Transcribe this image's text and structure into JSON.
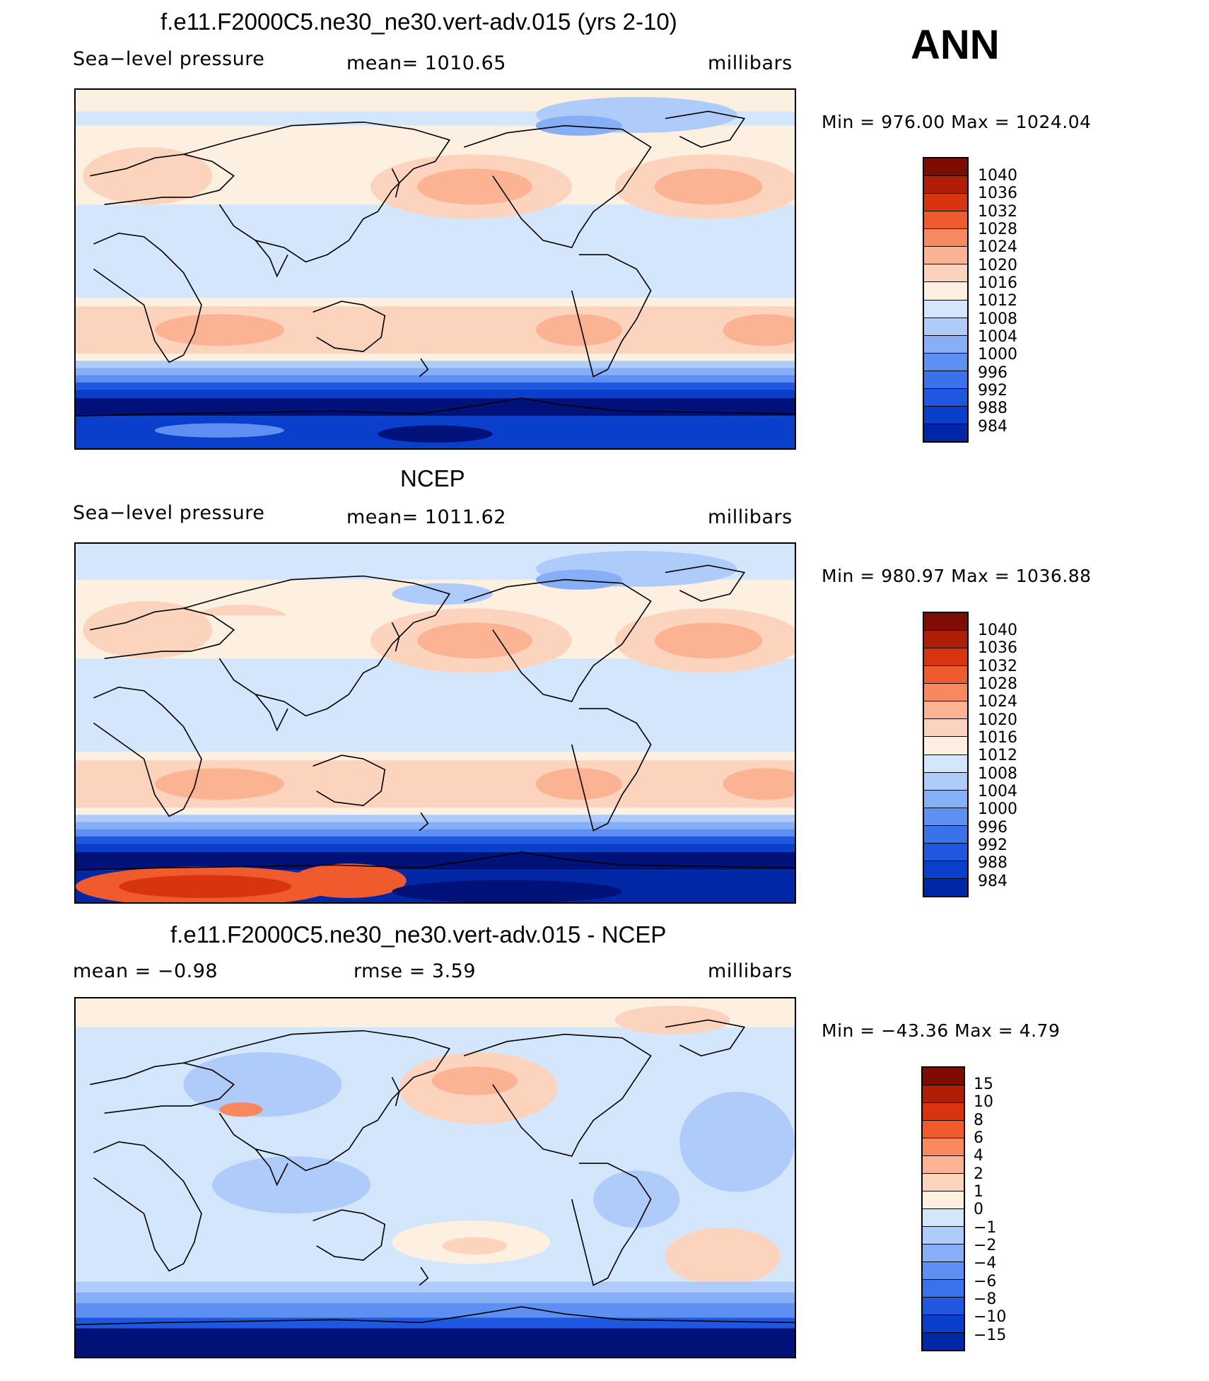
{
  "ann_label": "ANN",
  "palette_colors": [
    "#00127a",
    "#0027a6",
    "#0a3fcc",
    "#1f57e0",
    "#3a72eb",
    "#5d90f2",
    "#86aff7",
    "#afcbfa",
    "#d4e6fb",
    "#fdf0e0",
    "#fcd4be",
    "#fbb393",
    "#f8895e",
    "#f05b2e",
    "#d8340f",
    "#b01e08",
    "#7e0c03"
  ],
  "land_outline_color": "#000000",
  "panels": [
    {
      "title": "f.e11.F2000C5.ne30_ne30.vert-adv.015 (yrs 2-10)",
      "left_label": "Sea−level pressure",
      "center_label": "mean=  1010.65",
      "right_label": "millibars",
      "min_max": "Min  =  976.00  Max  =  1024.04",
      "colorbar_labels": [
        "1040",
        "1036",
        "1032",
        "1028",
        "1024",
        "1020",
        "1016",
        "1012",
        "1008",
        "1004",
        "1000",
        "996",
        "992",
        "988",
        "984"
      ]
    },
    {
      "title": "NCEP",
      "left_label": "Sea−level pressure",
      "center_label": "mean=  1011.62",
      "right_label": "millibars",
      "min_max": "Min  =  980.97  Max  =  1036.88",
      "colorbar_labels": [
        "1040",
        "1036",
        "1032",
        "1028",
        "1024",
        "1020",
        "1016",
        "1012",
        "1008",
        "1004",
        "1000",
        "996",
        "992",
        "988",
        "984"
      ]
    },
    {
      "title": "f.e11.F2000C5.ne30_ne30.vert-adv.015 - NCEP",
      "left_label": "mean  =     −0.98",
      "center_label": "rmse  =      3.59",
      "right_label": "millibars",
      "min_max": "Min  =  −43.36  Max  =      4.79",
      "colorbar_labels": [
        "15",
        "10",
        "8",
        "6",
        "4",
        "2",
        "1",
        "0",
        "−1",
        "−2",
        "−4",
        "−6",
        "−8",
        "−10",
        "−15"
      ]
    }
  ]
}
